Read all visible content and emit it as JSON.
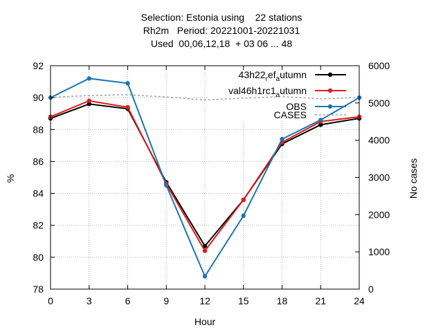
{
  "title": {
    "line1": "Selection: Estonia using    22 stations",
    "line2": "Rh2m   Period: 20221001-20221031",
    "line3": "Used  00,06,12,18  + 03 06 ... 48"
  },
  "chart_data": {
    "type": "line",
    "xlabel": "Hour",
    "ylabel": "%",
    "y2label": "No cases",
    "x": [
      0,
      3,
      6,
      9,
      12,
      15,
      18,
      21,
      24
    ],
    "xticks": [
      "0",
      "3",
      "6",
      "9",
      "12",
      "15",
      "18",
      "21",
      "24"
    ],
    "xlim": [
      0,
      24
    ],
    "ylim": [
      78,
      92
    ],
    "yticks": [
      "78",
      "80",
      "82",
      "84",
      "86",
      "88",
      "90",
      "92"
    ],
    "y2lim": [
      0,
      6000
    ],
    "y2ticks": [
      "0",
      "1000",
      "2000",
      "3000",
      "4000",
      "5000",
      "6000"
    ],
    "grid": true,
    "legend_position": "top-right",
    "series": [
      {
        "name": "43h22_ref_autumn",
        "legend_main": "43h22",
        "legend_sub1": "r",
        "legend_mid": "ef",
        "legend_sub2": "a",
        "legend_tail": "utumn",
        "color": "#000000",
        "values": [
          88.7,
          89.6,
          89.3,
          84.7,
          80.7,
          83.6,
          87.1,
          88.3,
          88.7
        ]
      },
      {
        "name": "val46h1rc1_autumn",
        "legend_main": "val46h1rc1",
        "legend_sub1": "",
        "legend_mid": "",
        "legend_sub2": "a",
        "legend_tail": "utumn",
        "color": "#dd1c1a",
        "values": [
          88.8,
          89.8,
          89.4,
          84.6,
          80.4,
          83.6,
          87.2,
          88.5,
          88.8
        ]
      },
      {
        "name": "OBS",
        "legend_main": "OBS",
        "legend_sub1": "",
        "legend_mid": "",
        "legend_sub2": "",
        "legend_tail": "",
        "color": "#1a75b0",
        "values": [
          90.0,
          91.2,
          90.9,
          84.5,
          78.8,
          82.6,
          87.4,
          88.6,
          90.0
        ]
      }
    ],
    "cases": {
      "name": "CASES",
      "color": "#a0a0a0",
      "axis": "y2",
      "values": [
        5150,
        5200,
        5220,
        5160,
        5080,
        5130,
        5170,
        5110,
        5150
      ]
    }
  }
}
